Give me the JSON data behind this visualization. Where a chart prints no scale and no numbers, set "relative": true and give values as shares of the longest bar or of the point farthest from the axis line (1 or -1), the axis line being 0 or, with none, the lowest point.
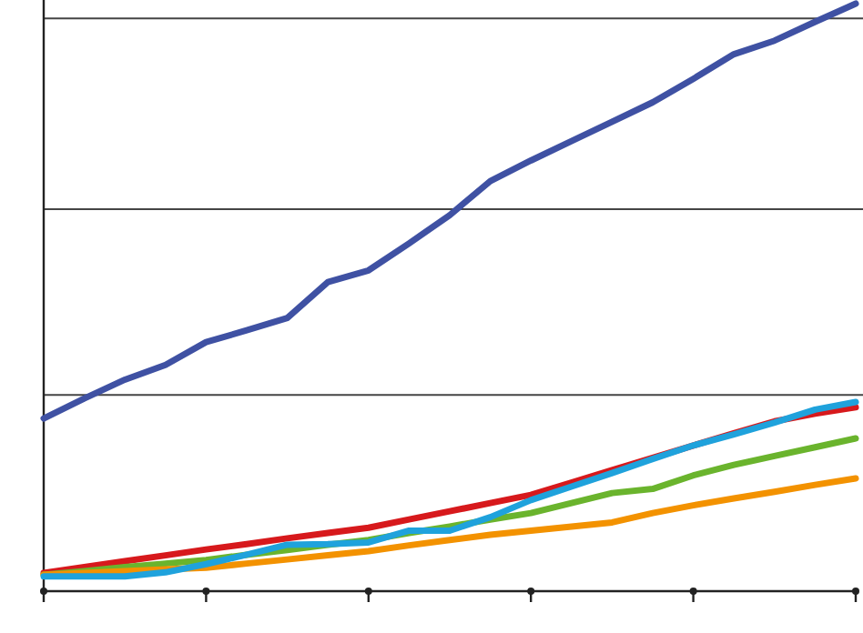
{
  "chart_data": {
    "type": "line",
    "relative": true,
    "grid": "y",
    "line_style": "solid",
    "categories": [
      null,
      null,
      null,
      null,
      null,
      null,
      null,
      null,
      null,
      null,
      null,
      null,
      null,
      null,
      null,
      null,
      null,
      null,
      null,
      null,
      null
    ],
    "series": [
      {
        "color": "#3f51a3",
        "values": [
          0.294,
          0.328,
          0.36,
          0.385,
          0.424,
          0.444,
          0.465,
          0.526,
          0.546,
          0.592,
          0.64,
          0.698,
          0.733,
          0.766,
          0.799,
          0.832,
          0.872,
          0.914,
          0.937,
          0.969,
          1.0
        ]
      },
      {
        "color": "#d7191c",
        "values": [
          0.031,
          0.041,
          0.051,
          0.061,
          0.071,
          0.08,
          0.09,
          0.099,
          0.108,
          0.122,
          0.136,
          0.15,
          0.164,
          0.185,
          0.206,
          0.227,
          0.248,
          0.269,
          0.289,
          0.302,
          0.313
        ]
      },
      {
        "color": "#6ab42d",
        "values": [
          0.028,
          0.034,
          0.041,
          0.047,
          0.053,
          0.062,
          0.07,
          0.079,
          0.087,
          0.099,
          0.11,
          0.122,
          0.133,
          0.15,
          0.167,
          0.174,
          0.197,
          0.215,
          0.23,
          0.245,
          0.26
        ]
      },
      {
        "color": "#f39200",
        "values": [
          0.028,
          0.031,
          0.034,
          0.037,
          0.04,
          0.047,
          0.054,
          0.061,
          0.068,
          0.078,
          0.087,
          0.096,
          0.103,
          0.11,
          0.117,
          0.133,
          0.146,
          0.158,
          0.169,
          0.181,
          0.192
        ]
      },
      {
        "color": "#1fa2dc",
        "values": [
          0.025,
          0.025,
          0.025,
          0.032,
          0.046,
          0.062,
          0.079,
          0.08,
          0.083,
          0.103,
          0.103,
          0.126,
          0.155,
          0.178,
          0.201,
          0.225,
          0.248,
          0.267,
          0.287,
          0.309,
          0.322
        ]
      }
    ]
  }
}
